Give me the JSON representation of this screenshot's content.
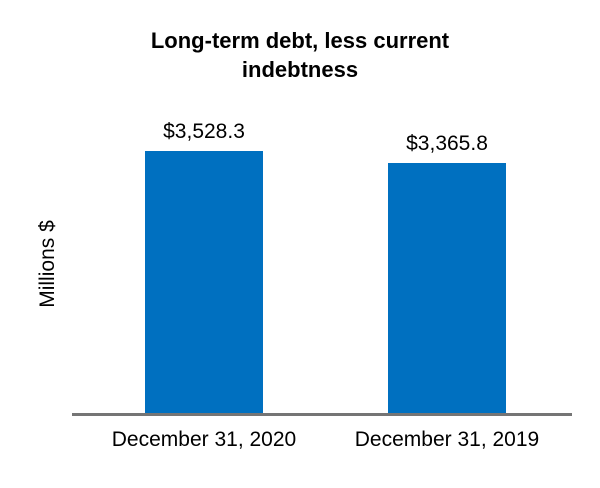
{
  "chart_data": {
    "type": "bar",
    "title": "Long-term debt, less current indebtness",
    "xlabel": "",
    "ylabel": "Millions $",
    "categories": [
      "December 31, 2020",
      "December 31, 2019"
    ],
    "values": [
      3528.3,
      3365.8
    ],
    "value_labels": [
      "$3,528.3",
      "$3,365.8"
    ],
    "ylim": [
      0,
      3528.3
    ],
    "grid": false,
    "legend_position": "none",
    "bar_color": "#0070C0",
    "axis_line_color": "#757575",
    "text_color": "#000000"
  }
}
